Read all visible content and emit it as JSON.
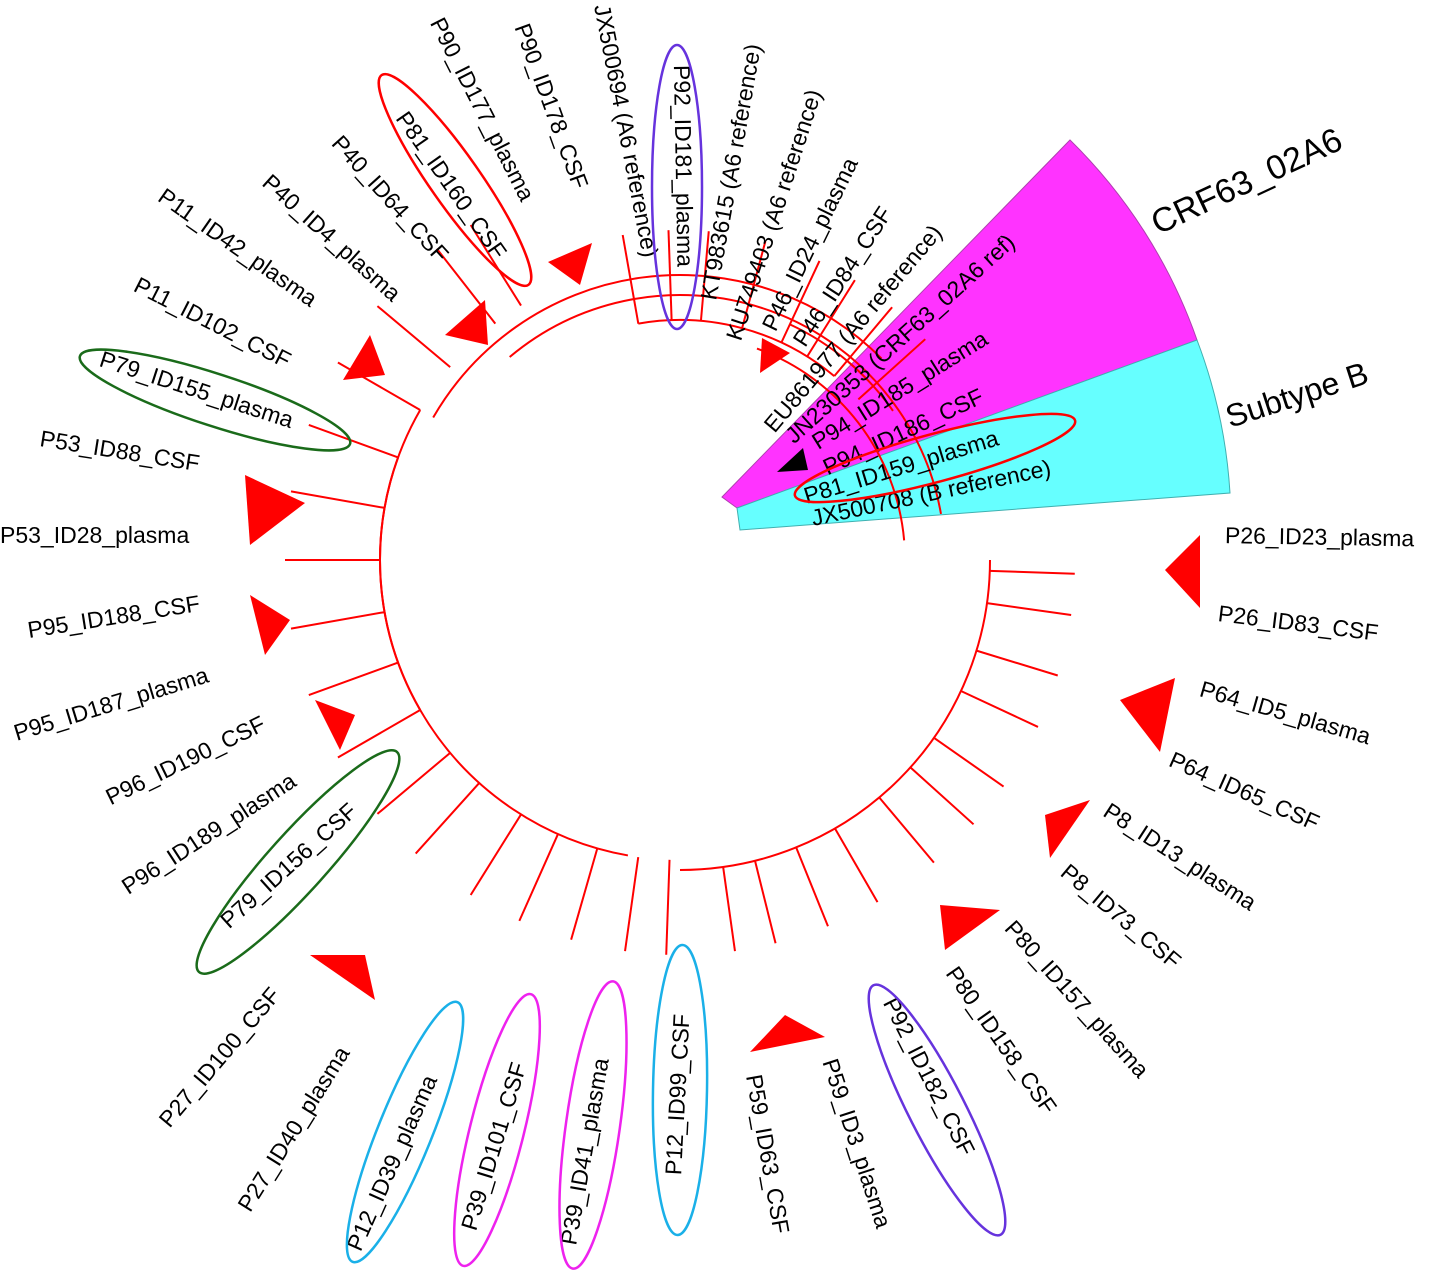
{
  "clades": [
    {
      "name": "CRF63_02A6",
      "color": "#ff33ff"
    },
    {
      "name": "Subtype B",
      "color": "#66ffff"
    }
  ],
  "branch_color": "#ff0000",
  "leaves": [
    {
      "text": "JX500708 (B reference)"
    },
    {
      "text": "P81_ID159_plasma",
      "circled": "#ff0000"
    },
    {
      "text": "P94_ID186_CSF"
    },
    {
      "text": "P94_ID185_plasma"
    },
    {
      "text": "JN230353 (CRF63_02A6 ref)"
    },
    {
      "text": "EU861977 (A6 reference)"
    },
    {
      "text": "P46_ID84_CSF"
    },
    {
      "text": "P46_ID24_plasma"
    },
    {
      "text": "KU749403 (A6 reference)"
    },
    {
      "text": "KT983615 (A6 reference)"
    },
    {
      "text": "P92_ID181_plasma",
      "circled": "#6633dd"
    },
    {
      "text": "JX500694 (A6 reference)"
    },
    {
      "text": "P90_ID178_CSF"
    },
    {
      "text": "P90_ID177_plasma"
    },
    {
      "text": "P81_ID160_CSF",
      "circled": "#ff0000"
    },
    {
      "text": "P40_ID64_CSF"
    },
    {
      "text": "P40_ID4_plasma"
    },
    {
      "text": "P11_ID42_plasma"
    },
    {
      "text": "P11_ID102_CSF"
    },
    {
      "text": "P79_ID155_plasma",
      "circled": "#1a6b1a"
    },
    {
      "text": "P53_ID88_CSF"
    },
    {
      "text": "P53_ID28_plasma"
    },
    {
      "text": "P95_ID188_CSF"
    },
    {
      "text": "P95_ID187_plasma"
    },
    {
      "text": "P96_ID190_CSF"
    },
    {
      "text": "P96_ID189_plasma"
    },
    {
      "text": "P79_ID156_CSF",
      "circled": "#1a6b1a"
    },
    {
      "text": "P27_ID100_CSF"
    },
    {
      "text": "P27_ID40_plasma"
    },
    {
      "text": "P12_ID39_plasma",
      "circled": "#1ab0e8"
    },
    {
      "text": "P39_ID101_CSF",
      "circled": "#ee22ee"
    },
    {
      "text": "P39_ID41_plasma",
      "circled": "#ee22ee"
    },
    {
      "text": "P12_ID99_CSF",
      "circled": "#1ab0e8"
    },
    {
      "text": "P59_ID63_CSF"
    },
    {
      "text": "P59_ID3_plasma"
    },
    {
      "text": "P92_ID182_CSF",
      "circled": "#6633dd"
    },
    {
      "text": "P80_ID158_CSF"
    },
    {
      "text": "P80_ID157_plasma"
    },
    {
      "text": "P8_ID73_CSF"
    },
    {
      "text": "P8_ID13_plasma"
    },
    {
      "text": "P64_ID65_CSF"
    },
    {
      "text": "P64_ID5_plasma"
    },
    {
      "text": "P26_ID83_CSF"
    },
    {
      "text": "P26_ID23_plasma"
    }
  ]
}
